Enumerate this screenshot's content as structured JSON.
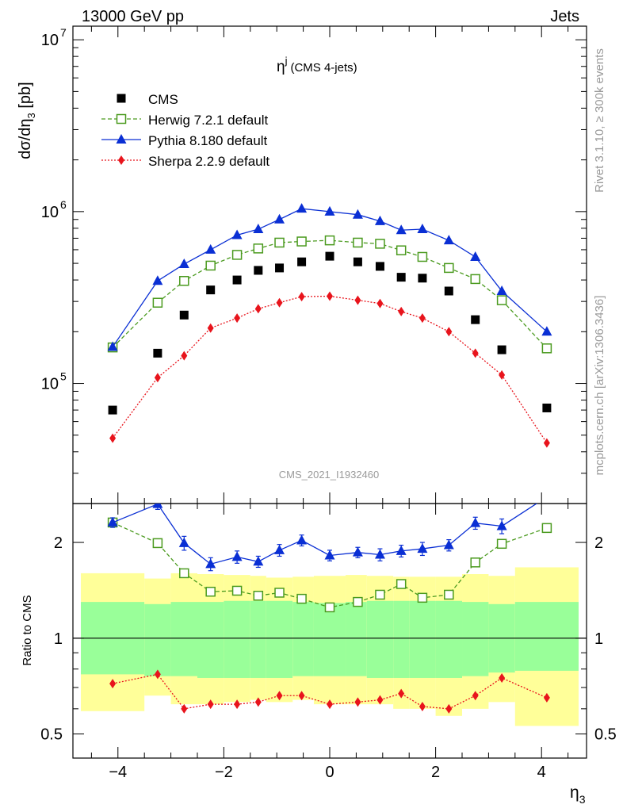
{
  "header": {
    "left": "13000 GeV pp",
    "right": "Jets",
    "rivet": "Rivet 3.1.10, ≥ 300k events",
    "mcplots": "mcplots.cern.ch [arXiv:1306.3436]",
    "analysis": "CMS_2021_I1932460"
  },
  "chart_data": {
    "type": "scatter",
    "title": "η^j (CMS 4-jets)",
    "title_main": "η",
    "title_sup": "j",
    "title_rest": "(CMS 4-jets)",
    "xlabel": "η_3",
    "xlabel_main": "η",
    "xlabel_sub": "3",
    "ylabel": "dσ/dη_3 [pb]",
    "ylabel_a": "dσ/dη",
    "ylabel_sub": "3",
    "ylabel_b": " [pb]",
    "ratio_ylabel": "Ratio to CMS",
    "xlim": [
      -4.85,
      4.85
    ],
    "main_ylim": [
      20000,
      12000000
    ],
    "main_yscale": "log",
    "ratio_ylim": [
      0.42,
      2.65
    ],
    "ratio_yscale": "log",
    "x_ticks": [
      -4,
      -2,
      0,
      2,
      4
    ],
    "x_tick_labels": [
      "−4",
      "−2",
      "0",
      "2",
      "4"
    ],
    "main_y_ticks": [
      {
        "value": 100000,
        "base": "10",
        "exp": "5"
      },
      {
        "value": 1000000,
        "base": "10",
        "exp": "6"
      },
      {
        "value": 10000000,
        "base": "10",
        "exp": "7"
      }
    ],
    "ratio_y_ticks": [
      {
        "value": 0.5,
        "label": "0.5"
      },
      {
        "value": 1,
        "label": "1"
      },
      {
        "value": 2,
        "label": "2"
      }
    ],
    "x": [
      -4.1,
      -3.25,
      -2.75,
      -2.25,
      -1.75,
      -1.35,
      -0.95,
      -0.53,
      0,
      0.53,
      0.95,
      1.35,
      1.75,
      2.25,
      2.75,
      3.25,
      4.1
    ],
    "bin_edges": [
      -4.7,
      -3.5,
      -3.0,
      -2.5,
      -2.0,
      -1.5,
      -1.2,
      -0.7,
      -0.3,
      0.3,
      0.7,
      1.2,
      1.5,
      2.0,
      2.5,
      3.0,
      3.5,
      4.7
    ],
    "series": [
      {
        "name": "CMS",
        "color": "#000000",
        "marker": "square",
        "values": [
          70000,
          150000,
          250000,
          350000,
          400000,
          455000,
          470000,
          510000,
          550000,
          510000,
          480000,
          415000,
          410000,
          345000,
          235000,
          157000,
          72000
        ]
      },
      {
        "name": "Herwig 7.2.1 default",
        "color": "#4a9a1e",
        "marker": "open-square",
        "line": "dashed",
        "values": [
          162000,
          295000,
          395000,
          485000,
          560000,
          610000,
          660000,
          670000,
          680000,
          660000,
          650000,
          595000,
          545000,
          470000,
          405000,
          305000,
          160000
        ],
        "ratio": [
          2.31,
          1.99,
          1.6,
          1.4,
          1.41,
          1.36,
          1.39,
          1.33,
          1.25,
          1.3,
          1.37,
          1.48,
          1.34,
          1.37,
          1.73,
          1.98,
          2.22
        ]
      },
      {
        "name": "Pythia 8.180 default",
        "color": "#0a2fd4",
        "marker": "triangle",
        "line": "solid",
        "values": [
          163000,
          395000,
          495000,
          600000,
          730000,
          790000,
          900000,
          1040000,
          1000000,
          960000,
          880000,
          780000,
          790000,
          680000,
          545000,
          345000,
          200000
        ],
        "ratio": [
          2.31,
          2.64,
          1.99,
          1.71,
          1.8,
          1.74,
          1.89,
          2.03,
          1.82,
          1.86,
          1.83,
          1.88,
          1.91,
          1.96,
          2.3,
          2.25,
          2.78
        ],
        "ratio_err": [
          0.08,
          0.1,
          0.1,
          0.08,
          0.08,
          0.07,
          0.08,
          0.08,
          0.07,
          0.07,
          0.08,
          0.08,
          0.09,
          0.08,
          0.1,
          0.12,
          0.12
        ]
      },
      {
        "name": "Sherpa 2.2.9 default",
        "color": "#e8141c",
        "marker": "diamond",
        "line": "dotted",
        "values": [
          48000,
          108000,
          145000,
          210000,
          240000,
          272000,
          295000,
          320000,
          322000,
          305000,
          292000,
          262000,
          240000,
          200000,
          150000,
          112000,
          45000
        ],
        "ratio": [
          0.72,
          0.77,
          0.6,
          0.62,
          0.62,
          0.63,
          0.66,
          0.66,
          0.62,
          0.63,
          0.64,
          0.67,
          0.61,
          0.6,
          0.66,
          0.75,
          0.65
        ]
      }
    ],
    "bands": {
      "stat_color": "#99ff99",
      "total_color": "#ffff99",
      "green_lo": [
        0.77,
        0.76,
        0.76,
        0.75,
        0.75,
        0.75,
        0.75,
        0.76,
        0.76,
        0.76,
        0.75,
        0.75,
        0.75,
        0.75,
        0.76,
        0.78,
        0.79
      ],
      "green_hi": [
        1.3,
        1.28,
        1.3,
        1.3,
        1.31,
        1.31,
        1.31,
        1.3,
        1.29,
        1.3,
        1.31,
        1.31,
        1.31,
        1.31,
        1.3,
        1.28,
        1.3
      ],
      "yellow_lo": [
        0.59,
        0.66,
        0.62,
        0.62,
        0.63,
        0.64,
        0.63,
        0.64,
        0.62,
        0.62,
        0.62,
        0.6,
        0.6,
        0.57,
        0.6,
        0.63,
        0.53
      ],
      "yellow_hi": [
        1.6,
        1.54,
        1.6,
        1.59,
        1.58,
        1.57,
        1.55,
        1.56,
        1.57,
        1.58,
        1.57,
        1.56,
        1.56,
        1.56,
        1.59,
        1.57,
        1.67
      ]
    },
    "legend_position": "top-left"
  }
}
